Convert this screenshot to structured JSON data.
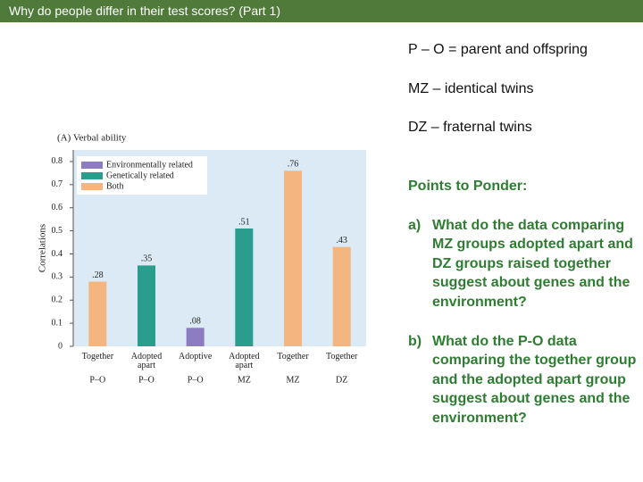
{
  "header": {
    "title": "Why do people differ in their test scores? (Part 1)"
  },
  "definitions": [
    "P – O = parent and offspring",
    "MZ – identical twins",
    "DZ – fraternal twins"
  ],
  "ponder": {
    "heading": "Points to Ponder:",
    "questions": [
      {
        "label": "a)",
        "text": "What do the data comparing MZ groups adopted apart and DZ groups raised together suggest about genes and the environment?"
      },
      {
        "label": "b)",
        "text": "What do the P-O data comparing the together group and the adopted apart group suggest about genes and the environment?"
      }
    ]
  },
  "chart_data": {
    "type": "bar",
    "title": "(A) Verbal ability",
    "y_label": "Correlations",
    "categories": [
      "Together",
      "Adopted apart",
      "Adoptive",
      "Adopted apart",
      "Together",
      "Together"
    ],
    "groups": [
      "P–O",
      "P–O",
      "P–O",
      "MZ",
      "MZ",
      "DZ"
    ],
    "values": [
      0.28,
      0.35,
      0.08,
      0.51,
      0.76,
      0.43
    ],
    "value_labels": [
      ".28",
      ".35",
      ".08",
      ".51",
      ".76",
      ".43"
    ],
    "colors": [
      "#f4b580",
      "#2a9d8f",
      "#8e7cc3",
      "#2a9d8f",
      "#f4b580",
      "#f4b580"
    ],
    "legend": [
      {
        "name": "Environmentally related",
        "color": "#8e7cc3"
      },
      {
        "name": "Genetically related",
        "color": "#2a9d8f"
      },
      {
        "name": "Both",
        "color": "#f4b580"
      }
    ],
    "ylim": [
      0,
      0.85
    ],
    "yticks": [
      0,
      0.1,
      0.2,
      0.3,
      0.4,
      0.5,
      0.6,
      0.7,
      0.8
    ]
  }
}
